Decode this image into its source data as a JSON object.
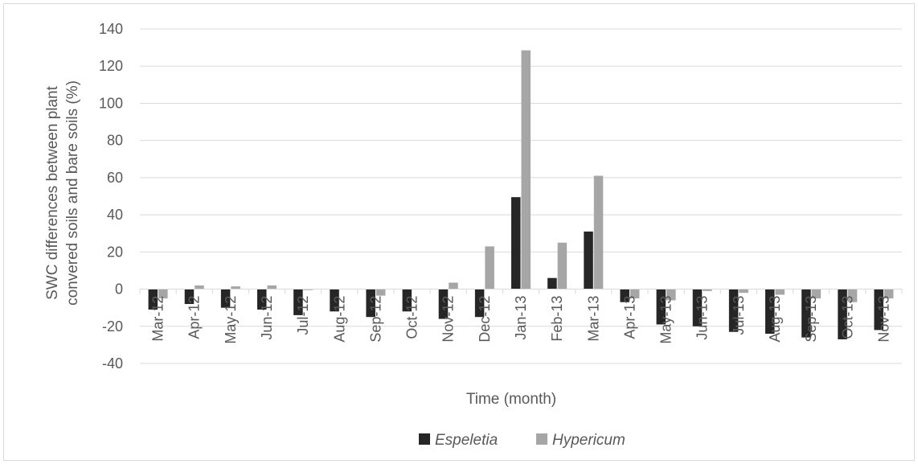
{
  "chart_data": {
    "type": "bar",
    "categories": [
      "Mar-12",
      "Apr-12",
      "May-12",
      "Jun-12",
      "Jul-12",
      "Aug-12",
      "Sep-12",
      "Oct-12",
      "Nov-12",
      "Dec-12",
      "Jan-13",
      "Feb-13",
      "Mar-13",
      "Apr-13",
      "May-13",
      "Jun-13",
      "Jul-13",
      "Aug-13",
      "Sep-13",
      "Oct-13",
      "Nov-13"
    ],
    "series": [
      {
        "name": "Espeletia",
        "color": "#262626",
        "values": [
          -11,
          -8,
          -10,
          -11,
          -14,
          -12,
          -15,
          -12,
          -16,
          -15,
          49.5,
          6,
          31,
          -7,
          -19,
          -20,
          -23,
          -24,
          -26,
          -27,
          -22
        ]
      },
      {
        "name": "Hypericum",
        "color": "#a6a6a6",
        "values": [
          -5,
          2,
          1.5,
          2,
          -0.5,
          0,
          -3.5,
          0,
          3.5,
          23,
          128.5,
          25,
          61,
          -5,
          -6,
          -1,
          -2,
          -3,
          -5,
          -7,
          -5
        ]
      }
    ],
    "title": "",
    "xlabel": "Time (month)",
    "ylabel_lines": [
      "SWC differences between plant",
      "convered soils  and bare soils (%)"
    ],
    "ylim": [
      -40,
      140
    ],
    "yticks": [
      -40,
      -20,
      0,
      20,
      40,
      60,
      80,
      100,
      120,
      140
    ],
    "grid": true,
    "legend_position": "bottom"
  }
}
